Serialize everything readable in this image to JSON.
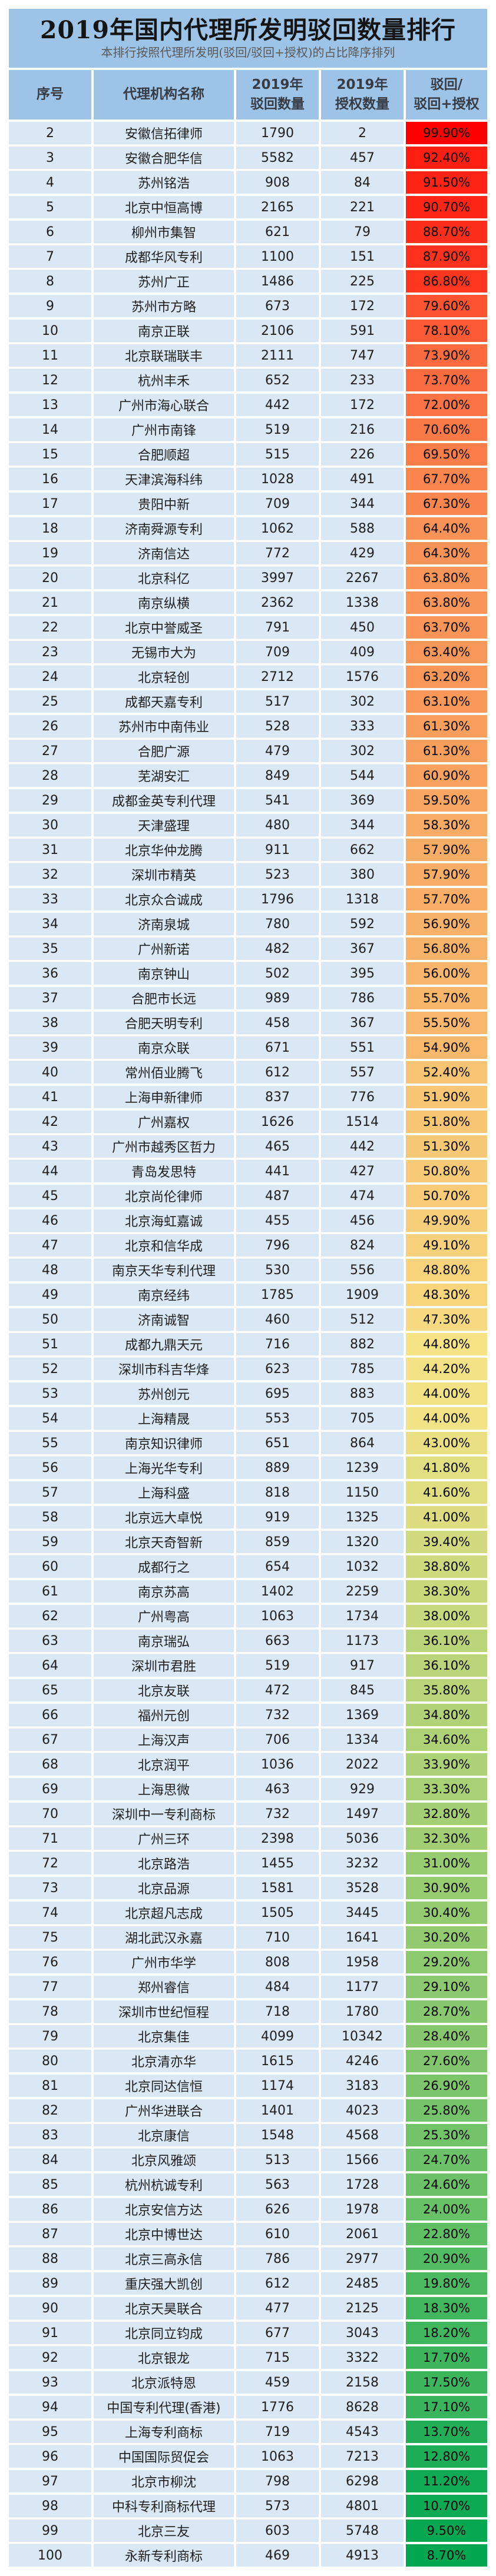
{
  "header": {
    "title": "2019年国内代理所发明驳回数量排行",
    "subtitle": "本排行按照代理所发明(驳回/驳回+授权)的占比降序排列",
    "band_color": "#9DC3E6"
  },
  "table": {
    "header_bg": "#9DC3E6",
    "row_bg": "#DAE8F6",
    "columns": [
      {
        "label": "序号"
      },
      {
        "label": "代理机构名称"
      },
      {
        "line1": "2019年",
        "line2": "驳回数量"
      },
      {
        "line1": "2019年",
        "line2": "授权数量"
      },
      {
        "line1": "驳回/",
        "line2": "驳回+授权"
      }
    ]
  },
  "chart_data": {
    "type": "table",
    "title": "2019年国内代理所发明驳回数量排行",
    "subtitle": "本排行按照代理所发明(驳回/驳回+授权)的占比降序排列",
    "columns": [
      "序号",
      "代理机构名称",
      "2019年驳回数量",
      "2019年授权数量",
      "驳回/(驳回+授权)"
    ],
    "color_scale": {
      "max_value": 99.9,
      "mid_value": 44.8,
      "min_value": 8.7,
      "max_color": "#FF0000",
      "mid_color": "#F6E386",
      "min_color": "#00A650"
    },
    "rows": [
      [
        2,
        "安徽信拓律师",
        1790,
        2,
        "99.90%"
      ],
      [
        3,
        "安徽合肥华信",
        5582,
        457,
        "92.40%"
      ],
      [
        4,
        "苏州铭浩",
        908,
        84,
        "91.50%"
      ],
      [
        5,
        "北京中恒高博",
        2165,
        221,
        "90.70%"
      ],
      [
        6,
        "柳州市集智",
        621,
        79,
        "88.70%"
      ],
      [
        7,
        "成都华风专利",
        1100,
        151,
        "87.90%"
      ],
      [
        8,
        "苏州广正",
        1486,
        225,
        "86.80%"
      ],
      [
        9,
        "苏州市方略",
        673,
        172,
        "79.60%"
      ],
      [
        10,
        "南京正联",
        2106,
        591,
        "78.10%"
      ],
      [
        11,
        "北京联瑞联丰",
        2111,
        747,
        "73.90%"
      ],
      [
        12,
        "杭州丰禾",
        652,
        233,
        "73.70%"
      ],
      [
        13,
        "广州市海心联合",
        442,
        172,
        "72.00%"
      ],
      [
        14,
        "广州市南锋",
        519,
        216,
        "70.60%"
      ],
      [
        15,
        "合肥顺超",
        515,
        226,
        "69.50%"
      ],
      [
        16,
        "天津滨海科纬",
        1028,
        491,
        "67.70%"
      ],
      [
        17,
        "贵阳中新",
        709,
        344,
        "67.30%"
      ],
      [
        18,
        "济南舜源专利",
        1062,
        588,
        "64.40%"
      ],
      [
        19,
        "济南信达",
        772,
        429,
        "64.30%"
      ],
      [
        20,
        "北京科亿",
        3997,
        2267,
        "63.80%"
      ],
      [
        21,
        "南京纵横",
        2362,
        1338,
        "63.80%"
      ],
      [
        22,
        "北京中誉威圣",
        791,
        450,
        "63.70%"
      ],
      [
        23,
        "无锡市大为",
        709,
        409,
        "63.40%"
      ],
      [
        24,
        "北京轻创",
        2712,
        1576,
        "63.20%"
      ],
      [
        25,
        "成都天嘉专利",
        517,
        302,
        "63.10%"
      ],
      [
        26,
        "苏州市中南伟业",
        528,
        333,
        "61.30%"
      ],
      [
        27,
        "合肥广源",
        479,
        302,
        "61.30%"
      ],
      [
        28,
        "芜湖安汇",
        849,
        544,
        "60.90%"
      ],
      [
        29,
        "成都金英专利代理",
        541,
        369,
        "59.50%"
      ],
      [
        30,
        "天津盛理",
        480,
        344,
        "58.30%"
      ],
      [
        31,
        "北京华仲龙腾",
        911,
        662,
        "57.90%"
      ],
      [
        32,
        "深圳市精英",
        523,
        380,
        "57.90%"
      ],
      [
        33,
        "北京众合诚成",
        1796,
        1318,
        "57.70%"
      ],
      [
        34,
        "济南泉城",
        780,
        592,
        "56.90%"
      ],
      [
        35,
        "广州新诺",
        482,
        367,
        "56.80%"
      ],
      [
        36,
        "南京钟山",
        502,
        395,
        "56.00%"
      ],
      [
        37,
        "合肥市长远",
        989,
        786,
        "55.70%"
      ],
      [
        38,
        "合肥天明专利",
        458,
        367,
        "55.50%"
      ],
      [
        39,
        "南京众联",
        671,
        551,
        "54.90%"
      ],
      [
        40,
        "常州佰业腾飞",
        612,
        557,
        "52.40%"
      ],
      [
        41,
        "上海申新律师",
        837,
        776,
        "51.90%"
      ],
      [
        42,
        "广州嘉权",
        1626,
        1514,
        "51.80%"
      ],
      [
        43,
        "广州市越秀区哲力",
        465,
        442,
        "51.30%"
      ],
      [
        44,
        "青岛发思特",
        441,
        427,
        "50.80%"
      ],
      [
        45,
        "北京尚伦律师",
        487,
        474,
        "50.70%"
      ],
      [
        46,
        "北京海虹嘉诚",
        455,
        456,
        "49.90%"
      ],
      [
        47,
        "北京和信华成",
        796,
        824,
        "49.10%"
      ],
      [
        48,
        "南京天华专利代理",
        530,
        556,
        "48.80%"
      ],
      [
        49,
        "南京经纬",
        1785,
        1909,
        "48.30%"
      ],
      [
        50,
        "济南诚智",
        460,
        512,
        "47.30%"
      ],
      [
        51,
        "成都九鼎天元",
        716,
        882,
        "44.80%"
      ],
      [
        52,
        "深圳市科吉华烽",
        623,
        785,
        "44.20%"
      ],
      [
        53,
        "苏州创元",
        695,
        883,
        "44.00%"
      ],
      [
        54,
        "上海精晟",
        553,
        705,
        "44.00%"
      ],
      [
        55,
        "南京知识律师",
        651,
        864,
        "43.00%"
      ],
      [
        56,
        "上海光华专利",
        889,
        1239,
        "41.80%"
      ],
      [
        57,
        "上海科盛",
        818,
        1150,
        "41.60%"
      ],
      [
        58,
        "北京远大卓悦",
        919,
        1325,
        "41.00%"
      ],
      [
        59,
        "北京天奇智新",
        859,
        1320,
        "39.40%"
      ],
      [
        60,
        "成都行之",
        654,
        1032,
        "38.80%"
      ],
      [
        61,
        "南京苏高",
        1402,
        2259,
        "38.30%"
      ],
      [
        62,
        "广州粤高",
        1063,
        1734,
        "38.00%"
      ],
      [
        63,
        "南京瑞弘",
        663,
        1173,
        "36.10%"
      ],
      [
        64,
        "深圳市君胜",
        519,
        917,
        "36.10%"
      ],
      [
        65,
        "北京友联",
        472,
        845,
        "35.80%"
      ],
      [
        66,
        "福州元创",
        732,
        1369,
        "34.80%"
      ],
      [
        67,
        "上海汉声",
        706,
        1334,
        "34.60%"
      ],
      [
        68,
        "北京润平",
        1036,
        2022,
        "33.90%"
      ],
      [
        69,
        "上海思微",
        463,
        929,
        "33.30%"
      ],
      [
        70,
        "深圳中一专利商标",
        732,
        1497,
        "32.80%"
      ],
      [
        71,
        "广州三环",
        2398,
        5036,
        "32.30%"
      ],
      [
        72,
        "北京路浩",
        1455,
        3232,
        "31.00%"
      ],
      [
        73,
        "北京品源",
        1581,
        3528,
        "30.90%"
      ],
      [
        74,
        "北京超凡志成",
        1505,
        3445,
        "30.40%"
      ],
      [
        75,
        "湖北武汉永嘉",
        710,
        1641,
        "30.20%"
      ],
      [
        76,
        "广州市华学",
        808,
        1958,
        "29.20%"
      ],
      [
        77,
        "郑州睿信",
        484,
        1177,
        "29.10%"
      ],
      [
        78,
        "深圳市世纪恒程",
        718,
        1780,
        "28.70%"
      ],
      [
        79,
        "北京集佳",
        4099,
        10342,
        "28.40%"
      ],
      [
        80,
        "北京清亦华",
        1615,
        4246,
        "27.60%"
      ],
      [
        81,
        "北京同达信恒",
        1174,
        3183,
        "26.90%"
      ],
      [
        82,
        "广州华进联合",
        1401,
        4023,
        "25.80%"
      ],
      [
        83,
        "北京康信",
        1548,
        4568,
        "25.30%"
      ],
      [
        84,
        "北京风雅颂",
        513,
        1566,
        "24.70%"
      ],
      [
        85,
        "杭州杭诚专利",
        563,
        1728,
        "24.60%"
      ],
      [
        86,
        "北京安信方达",
        626,
        1978,
        "24.00%"
      ],
      [
        87,
        "北京中博世达",
        610,
        2061,
        "22.80%"
      ],
      [
        88,
        "北京三高永信",
        786,
        2977,
        "20.90%"
      ],
      [
        89,
        "重庆强大凯创",
        612,
        2485,
        "19.80%"
      ],
      [
        90,
        "北京天昊联合",
        477,
        2125,
        "18.30%"
      ],
      [
        91,
        "北京同立钧成",
        677,
        3043,
        "18.20%"
      ],
      [
        92,
        "北京银龙",
        715,
        3322,
        "17.70%"
      ],
      [
        93,
        "北京派特恩",
        459,
        2158,
        "17.50%"
      ],
      [
        94,
        "中国专利代理(香港)",
        1776,
        8628,
        "17.10%"
      ],
      [
        95,
        "上海专利商标",
        719,
        4543,
        "13.70%"
      ],
      [
        96,
        "中国国际贸促会",
        1063,
        7213,
        "12.80%"
      ],
      [
        97,
        "北京市柳沈",
        798,
        6298,
        "11.20%"
      ],
      [
        98,
        "中科专利商标代理",
        573,
        4801,
        "10.70%"
      ],
      [
        99,
        "北京三友",
        603,
        5748,
        "9.50%"
      ],
      [
        100,
        "永新专利商标",
        469,
        4913,
        "8.70%"
      ]
    ]
  }
}
